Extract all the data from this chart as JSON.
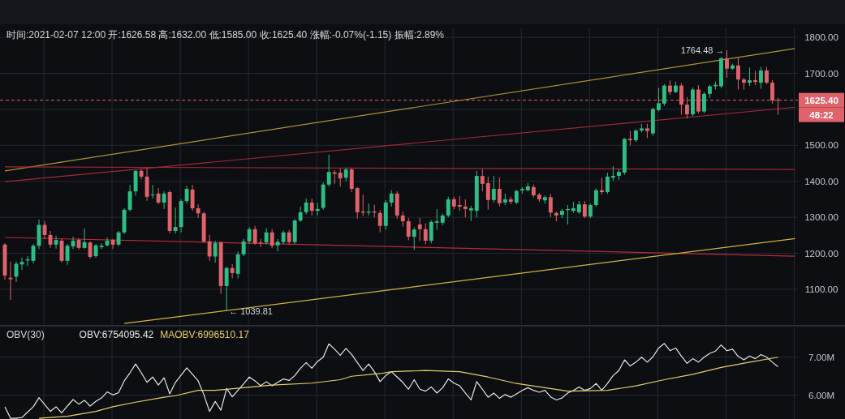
{
  "chart_data": [
    {
      "type": "candlestick",
      "title": "时间:2021-02-07 12:00 开:1626.58 高:1632.00 低:1585.00 收:1625.40 涨幅:-0.07%(-1.15) 振幅:2.89%",
      "categories": [
        null,
        null,
        null,
        null,
        null,
        null,
        null,
        null,
        null,
        null,
        null,
        null,
        null,
        null,
        null,
        null,
        null,
        null,
        null,
        null,
        null,
        null,
        null,
        null,
        null,
        null,
        null,
        null,
        null,
        null,
        null,
        null,
        null,
        null,
        null,
        null,
        null,
        null,
        null,
        null,
        null,
        null,
        null,
        null,
        null,
        null,
        null,
        null,
        null,
        null,
        null,
        null,
        null,
        null,
        null,
        null,
        null,
        null,
        null,
        null,
        null,
        null,
        null,
        null,
        null,
        null,
        null,
        null,
        null,
        null,
        null,
        null,
        null,
        null,
        null,
        null,
        null,
        null,
        null,
        null,
        null,
        null,
        null,
        null,
        null,
        null,
        null,
        null,
        null,
        null,
        null,
        null,
        null,
        null,
        null,
        null,
        null,
        null,
        null,
        null,
        null,
        null,
        null,
        null,
        null,
        null,
        null,
        null,
        null,
        null,
        null,
        null,
        null,
        null,
        null,
        null,
        null,
        null,
        null,
        null,
        null,
        null,
        null,
        null,
        null,
        null,
        null,
        null,
        null,
        null,
        null,
        null,
        null,
        null,
        null,
        null,
        null,
        null,
        null,
        null
      ],
      "colors": [
        "#e0626a",
        "#e0626a",
        "#2dbd85",
        "#2dbd85",
        "#2dbd85",
        "#2dbd85",
        "#2dbd85",
        "#e0626a",
        "#e0626a",
        "#2dbd85",
        "#e0626a",
        "#2dbd85",
        "#2dbd85",
        "#e0626a",
        "#2dbd85",
        "#e0626a",
        "#2dbd85",
        "#2dbd85",
        "#2dbd85",
        "#e0626a",
        "#2dbd85",
        "#2dbd85",
        "#2dbd85",
        "#2dbd85",
        "#e0626a",
        "#e0626a",
        "#2dbd85",
        "#e0626a",
        "#2dbd85",
        "#e0626a",
        "#2dbd85",
        "#2dbd85",
        "#2dbd85",
        "#e0626a",
        "#e0626a",
        "#e0626a",
        "#e0626a",
        "#2dbd85",
        "#e0626a",
        "#2dbd85",
        "#e0626a",
        "#2dbd85",
        "#2dbd85",
        "#2dbd85",
        "#e0626a",
        "#e0626a",
        "#2dbd85",
        "#e0626a",
        "#2dbd85",
        "#2dbd85",
        "#e0626a",
        "#2dbd85",
        "#2dbd85",
        "#2dbd85",
        "#e0626a",
        "#2dbd85",
        "#2dbd85",
        "#2dbd85",
        "#e0626a",
        "#e0626a",
        "#2dbd85",
        "#e0626a",
        "#e0626a",
        "#e0626a",
        "#2dbd85",
        "#e0626a",
        "#e0626a",
        "#2dbd85",
        "#2dbd85",
        "#e0626a",
        "#e0626a",
        "#e0626a",
        "#2dbd85",
        "#e0626a",
        "#e0626a",
        "#2dbd85",
        "#2dbd85",
        "#2dbd85",
        "#2dbd85",
        "#e0626a",
        "#e0626a",
        "#e0626a",
        "#2dbd85",
        "#2dbd85",
        "#e0626a",
        "#e0626a",
        "#2dbd85",
        "#e0626a",
        "#2dbd85",
        "#e0626a",
        "#2dbd85",
        "#2dbd85",
        "#2dbd85",
        "#e0626a",
        "#e0626a",
        "#2dbd85",
        "#e0626a",
        "#e0626a",
        "#2dbd85",
        "#2dbd85",
        "#2dbd85",
        "#2dbd85",
        "#e0626a",
        "#2dbd85",
        "#2dbd85",
        "#e0626a",
        "#2dbd85",
        "#2dbd85",
        "#2dbd85",
        "#2dbd85",
        "#e0626a",
        "#2dbd85",
        "#2dbd85",
        "#e0626a",
        "#2dbd85",
        "#2dbd85",
        "#2dbd85",
        "#e0626a",
        "#2dbd85",
        "#e0626a",
        "#e0626a",
        "#2dbd85",
        "#e0626a",
        "#2dbd85",
        "#2dbd85",
        "#2dbd85",
        "#2dbd85",
        "#e0626a",
        "#2dbd85",
        "#e0626a",
        "#e0626a",
        "#2dbd85",
        "#e0626a",
        "#2dbd85",
        "#e0626a",
        "#e0626a",
        "#e0626a",
        null,
        null,
        null
      ],
      "ohlc": [
        [
          1224,
          1228,
          1127,
          1138
        ],
        [
          1132,
          1177,
          1070,
          1128
        ],
        [
          1135,
          1177,
          1120,
          1171
        ],
        [
          1169,
          1188,
          1154,
          1176
        ],
        [
          1180,
          1192,
          1165,
          1183
        ],
        [
          1179,
          1226,
          1172,
          1221
        ],
        [
          1221,
          1294,
          1212,
          1279
        ],
        [
          1279,
          1289,
          1240,
          1251
        ],
        [
          1251,
          1262,
          1215,
          1224
        ],
        [
          1224,
          1249,
          1213,
          1237
        ],
        [
          1235,
          1240,
          1174,
          1179
        ],
        [
          1179,
          1226,
          1168,
          1221
        ],
        [
          1219,
          1246,
          1212,
          1235
        ],
        [
          1237,
          1242,
          1210,
          1215
        ],
        [
          1215,
          1269,
          1212,
          1231
        ],
        [
          1230,
          1233,
          1185,
          1190
        ],
        [
          1192,
          1226,
          1187,
          1222
        ],
        [
          1217,
          1228,
          1212,
          1221
        ],
        [
          1222,
          1244,
          1219,
          1235
        ],
        [
          1237,
          1240,
          1212,
          1224
        ],
        [
          1224,
          1262,
          1220,
          1258
        ],
        [
          1258,
          1325,
          1253,
          1321
        ],
        [
          1321,
          1390,
          1316,
          1372
        ],
        [
          1372,
          1431,
          1360,
          1429
        ],
        [
          1429,
          1434,
          1405,
          1413
        ],
        [
          1413,
          1436,
          1346,
          1357
        ],
        [
          1361,
          1390,
          1352,
          1363
        ],
        [
          1366,
          1381,
          1336,
          1341
        ],
        [
          1341,
          1372,
          1323,
          1366
        ],
        [
          1370,
          1375,
          1255,
          1262
        ],
        [
          1262,
          1327,
          1255,
          1273
        ],
        [
          1273,
          1350,
          1258,
          1345
        ],
        [
          1345,
          1388,
          1338,
          1379
        ],
        [
          1377,
          1390,
          1318,
          1325
        ],
        [
          1325,
          1336,
          1298,
          1311
        ],
        [
          1311,
          1315,
          1228,
          1233
        ],
        [
          1233,
          1251,
          1179,
          1191
        ],
        [
          1191,
          1235,
          1174,
          1228
        ],
        [
          1230,
          1233,
          1087,
          1109
        ],
        [
          1109,
          1163,
          1039.81,
          1159
        ],
        [
          1159,
          1170,
          1130,
          1145
        ],
        [
          1143,
          1205,
          1130,
          1197
        ],
        [
          1197,
          1240,
          1192,
          1233
        ],
        [
          1233,
          1273,
          1226,
          1267
        ],
        [
          1267,
          1276,
          1224,
          1228
        ],
        [
          1230,
          1240,
          1218,
          1228
        ],
        [
          1230,
          1270,
          1225,
          1258
        ],
        [
          1258,
          1267,
          1214,
          1221
        ],
        [
          1222,
          1240,
          1205,
          1232
        ],
        [
          1231,
          1263,
          1226,
          1258
        ],
        [
          1258,
          1265,
          1226,
          1231
        ],
        [
          1231,
          1295,
          1226,
          1291
        ],
        [
          1291,
          1330,
          1287,
          1314
        ],
        [
          1314,
          1352,
          1308,
          1341
        ],
        [
          1341,
          1352,
          1305,
          1318
        ],
        [
          1318,
          1340,
          1305,
          1323
        ],
        [
          1326,
          1397,
          1321,
          1391
        ],
        [
          1391,
          1474,
          1385,
          1426
        ],
        [
          1425,
          1431,
          1393,
          1421
        ],
        [
          1424,
          1435,
          1385,
          1408
        ],
        [
          1410,
          1438,
          1400,
          1433
        ],
        [
          1433,
          1438,
          1370,
          1379
        ],
        [
          1381,
          1384,
          1296,
          1314
        ],
        [
          1316,
          1363,
          1304,
          1313
        ],
        [
          1313,
          1338,
          1305,
          1316
        ],
        [
          1316,
          1335,
          1300,
          1313
        ],
        [
          1312,
          1320,
          1258,
          1276
        ],
        [
          1276,
          1348,
          1265,
          1341
        ],
        [
          1341,
          1375,
          1330,
          1366
        ],
        [
          1366,
          1372,
          1296,
          1305
        ],
        [
          1305,
          1316,
          1274,
          1289
        ],
        [
          1289,
          1298,
          1236,
          1246
        ],
        [
          1246,
          1272,
          1210,
          1266
        ],
        [
          1280,
          1298,
          1235,
          1267
        ],
        [
          1267,
          1283,
          1225,
          1235
        ],
        [
          1235,
          1292,
          1228,
          1287
        ],
        [
          1285,
          1323,
          1265,
          1289
        ],
        [
          1285,
          1310,
          1278,
          1305
        ],
        [
          1305,
          1357,
          1300,
          1350
        ],
        [
          1350,
          1357,
          1322,
          1330
        ],
        [
          1334,
          1359,
          1318,
          1330
        ],
        [
          1330,
          1350,
          1300,
          1323
        ],
        [
          1319,
          1332,
          1290,
          1325
        ],
        [
          1318,
          1429,
          1300,
          1415
        ],
        [
          1415,
          1434,
          1372,
          1393
        ],
        [
          1395,
          1413,
          1321,
          1348
        ],
        [
          1348,
          1415,
          1341,
          1379
        ],
        [
          1379,
          1411,
          1330,
          1339
        ],
        [
          1341,
          1366,
          1334,
          1350
        ],
        [
          1350,
          1357,
          1336,
          1343
        ],
        [
          1341,
          1377,
          1336,
          1373
        ],
        [
          1375,
          1384,
          1366,
          1379
        ],
        [
          1375,
          1395,
          1372,
          1386
        ],
        [
          1384,
          1391,
          1355,
          1361
        ],
        [
          1363,
          1368,
          1343,
          1350
        ],
        [
          1347,
          1361,
          1338,
          1356
        ],
        [
          1356,
          1365,
          1300,
          1313
        ],
        [
          1312,
          1316,
          1289,
          1305
        ],
        [
          1307,
          1323,
          1298,
          1318
        ],
        [
          1320,
          1334,
          1280,
          1323
        ],
        [
          1318,
          1343,
          1312,
          1325
        ],
        [
          1314,
          1345,
          1309,
          1336
        ],
        [
          1336,
          1345,
          1298,
          1302
        ],
        [
          1302,
          1338,
          1298,
          1334
        ],
        [
          1334,
          1380,
          1330,
          1375
        ],
        [
          1375,
          1410,
          1363,
          1370
        ],
        [
          1370,
          1424,
          1365,
          1413
        ],
        [
          1410,
          1442,
          1402,
          1415
        ],
        [
          1415,
          1434,
          1404,
          1426
        ],
        [
          1424,
          1520,
          1418,
          1518
        ],
        [
          1518,
          1540,
          1500,
          1514
        ],
        [
          1514,
          1545,
          1509,
          1541
        ],
        [
          1541,
          1560,
          1536,
          1547
        ],
        [
          1547,
          1560,
          1520,
          1540
        ],
        [
          1533,
          1605,
          1527,
          1601
        ],
        [
          1598,
          1660,
          1594,
          1617
        ],
        [
          1616,
          1670,
          1610,
          1666
        ],
        [
          1666,
          1680,
          1640,
          1648
        ],
        [
          1648,
          1677,
          1645,
          1666
        ],
        [
          1666,
          1673,
          1585,
          1613
        ],
        [
          1613,
          1634,
          1574,
          1586
        ],
        [
          1586,
          1661,
          1581,
          1655
        ],
        [
          1655,
          1667,
          1589,
          1594
        ],
        [
          1594,
          1648,
          1589,
          1643
        ],
        [
          1643,
          1668,
          1632,
          1664
        ],
        [
          1664,
          1677,
          1655,
          1668
        ],
        [
          1664,
          1745,
          1659,
          1742
        ],
        [
          1742,
          1764.48,
          1688,
          1713
        ],
        [
          1713,
          1727,
          1710,
          1722
        ],
        [
          1722,
          1745,
          1655,
          1683
        ],
        [
          1683,
          1688,
          1655,
          1674
        ],
        [
          1674,
          1716,
          1665,
          1681
        ],
        [
          1681,
          1707,
          1667,
          1676
        ],
        [
          1674,
          1718,
          1657,
          1708
        ],
        [
          1708,
          1718,
          1670,
          1674
        ],
        [
          1674,
          1681,
          1616,
          1625
        ],
        [
          1626.58,
          1632.0,
          1585.0,
          1625.4
        ],
        null,
        null,
        null
      ],
      "series": [
        {
          "type": "line",
          "color": "#ab9535",
          "values": [
            1429,
            null,
            null,
            null,
            null,
            null,
            null,
            null,
            null,
            null,
            null,
            null,
            null,
            null,
            null,
            null,
            null,
            null,
            null,
            null,
            null,
            null,
            null,
            null,
            null,
            null,
            null,
            null,
            null,
            null,
            null,
            null,
            null,
            null,
            null,
            null,
            null,
            null,
            null,
            null,
            null,
            null,
            null,
            null,
            null,
            null,
            null,
            null,
            null,
            null,
            null,
            null,
            null,
            null,
            null,
            null,
            null,
            null,
            null,
            null,
            null,
            null,
            null,
            null,
            null,
            null,
            null,
            null,
            null,
            null,
            null,
            null,
            null,
            null,
            null,
            null,
            null,
            null,
            null,
            null,
            null,
            null,
            null,
            null,
            null,
            null,
            null,
            null,
            null,
            null,
            null,
            null,
            null,
            null,
            null,
            null,
            null,
            null,
            null,
            null,
            null,
            null,
            null,
            null,
            null,
            null,
            null,
            null,
            null,
            null,
            null,
            null,
            null,
            null,
            null,
            null,
            null,
            null,
            null,
            null,
            null,
            null,
            null,
            null,
            null,
            null,
            null,
            null,
            null,
            null,
            null,
            null,
            null,
            null,
            null,
            null,
            null,
            null,
            null,
            1769
          ]
        },
        {
          "type": "line",
          "color": "#a3283a",
          "values": [
            1399,
            null,
            null,
            null,
            null,
            null,
            null,
            null,
            null,
            null,
            null,
            null,
            null,
            null,
            null,
            null,
            null,
            null,
            null,
            null,
            null,
            null,
            null,
            null,
            null,
            null,
            null,
            null,
            null,
            null,
            null,
            null,
            null,
            null,
            null,
            null,
            null,
            null,
            null,
            null,
            null,
            null,
            null,
            null,
            null,
            null,
            null,
            null,
            null,
            null,
            null,
            null,
            null,
            null,
            null,
            null,
            null,
            null,
            null,
            null,
            null,
            null,
            null,
            null,
            null,
            null,
            null,
            null,
            null,
            null,
            null,
            null,
            null,
            null,
            null,
            null,
            null,
            null,
            null,
            null,
            null,
            null,
            null,
            null,
            null,
            null,
            null,
            null,
            null,
            null,
            null,
            null,
            null,
            null,
            null,
            null,
            null,
            null,
            null,
            null,
            null,
            null,
            null,
            null,
            null,
            null,
            null,
            null,
            null,
            null,
            null,
            null,
            null,
            null,
            null,
            null,
            null,
            null,
            null,
            null,
            null,
            null,
            null,
            null,
            null,
            null,
            null,
            null,
            null,
            null,
            null,
            null,
            null,
            null,
            null,
            null,
            null,
            null,
            null,
            1606
          ]
        },
        {
          "type": "line",
          "color": "#a3283a",
          "values": [
            1440,
            null,
            null,
            null,
            null,
            null,
            null,
            null,
            null,
            null,
            null,
            null,
            null,
            null,
            null,
            null,
            null,
            null,
            null,
            null,
            null,
            null,
            null,
            null,
            null,
            null,
            null,
            null,
            null,
            null,
            null,
            null,
            null,
            null,
            null,
            null,
            null,
            null,
            null,
            null,
            null,
            null,
            null,
            null,
            null,
            null,
            null,
            null,
            null,
            null,
            null,
            null,
            null,
            null,
            null,
            null,
            null,
            null,
            null,
            null,
            null,
            null,
            null,
            null,
            null,
            null,
            null,
            null,
            null,
            null,
            null,
            null,
            null,
            null,
            null,
            null,
            null,
            null,
            null,
            null,
            null,
            null,
            null,
            null,
            null,
            null,
            null,
            null,
            null,
            null,
            null,
            null,
            null,
            null,
            null,
            null,
            null,
            null,
            null,
            null,
            null,
            null,
            null,
            null,
            null,
            null,
            null,
            null,
            null,
            null,
            null,
            null,
            null,
            null,
            null,
            null,
            null,
            null,
            null,
            null,
            null,
            null,
            null,
            null,
            null,
            null,
            null,
            null,
            null,
            null,
            null,
            null,
            null,
            null,
            null,
            null,
            null,
            null,
            null,
            1433
          ]
        },
        {
          "type": "line",
          "color": "#b52c3d",
          "values": [
            1244,
            null,
            null,
            null,
            null,
            null,
            null,
            null,
            null,
            null,
            null,
            null,
            null,
            null,
            null,
            null,
            null,
            null,
            null,
            null,
            null,
            null,
            null,
            null,
            null,
            null,
            null,
            null,
            null,
            null,
            null,
            null,
            null,
            null,
            null,
            null,
            null,
            null,
            null,
            null,
            null,
            null,
            null,
            null,
            null,
            null,
            null,
            null,
            null,
            null,
            null,
            null,
            null,
            null,
            null,
            null,
            null,
            null,
            null,
            null,
            null,
            null,
            null,
            null,
            null,
            null,
            null,
            null,
            null,
            null,
            null,
            null,
            null,
            null,
            null,
            null,
            null,
            null,
            null,
            null,
            null,
            null,
            null,
            null,
            null,
            null,
            null,
            null,
            null,
            null,
            null,
            null,
            null,
            null,
            null,
            null,
            null,
            null,
            null,
            null,
            null,
            null,
            null,
            null,
            null,
            null,
            null,
            null,
            null,
            null,
            null,
            null,
            null,
            null,
            null,
            null,
            null,
            null,
            null,
            null,
            null,
            null,
            null,
            null,
            null,
            null,
            null,
            null,
            null,
            null,
            null,
            null,
            null,
            null,
            null,
            null,
            null,
            null,
            null,
            1192
          ]
        },
        {
          "type": "line",
          "color": "#cdb63f",
          "values": [
            null,
            null,
            null,
            null,
            null,
            null,
            null,
            null,
            null,
            null,
            null,
            null,
            null,
            null,
            null,
            null,
            null,
            null,
            null,
            null,
            null,
            1005,
            null,
            null,
            null,
            null,
            null,
            null,
            null,
            null,
            null,
            null,
            null,
            null,
            null,
            null,
            null,
            null,
            null,
            null,
            null,
            null,
            null,
            null,
            null,
            null,
            null,
            null,
            null,
            null,
            null,
            null,
            null,
            null,
            null,
            null,
            null,
            null,
            null,
            null,
            null,
            null,
            null,
            null,
            null,
            null,
            null,
            null,
            null,
            null,
            null,
            null,
            null,
            null,
            null,
            null,
            null,
            null,
            null,
            null,
            null,
            null,
            null,
            null,
            null,
            null,
            null,
            null,
            null,
            null,
            null,
            null,
            null,
            null,
            null,
            null,
            null,
            null,
            null,
            null,
            null,
            null,
            null,
            null,
            null,
            null,
            null,
            null,
            null,
            null,
            null,
            null,
            null,
            null,
            null,
            null,
            null,
            null,
            null,
            null,
            null,
            null,
            null,
            null,
            null,
            null,
            null,
            null,
            null,
            null,
            null,
            null,
            null,
            null,
            null,
            null,
            null,
            null,
            null,
            1241
          ]
        }
      ],
      "ref_lines": [
        {
          "axis": "y",
          "value": 1625.4,
          "label": "1625.40",
          "line_style": "dashed",
          "color": "#e0626a"
        }
      ],
      "annotations": [
        "1764.48 →",
        "← 1039.81",
        "48:22"
      ],
      "ylim": [
        1003,
        1825
      ],
      "yticks": [
        {
          "value": 1100,
          "label": "1100.00"
        },
        {
          "value": 1200,
          "label": "1200.00"
        },
        {
          "value": 1300,
          "label": "1300.00"
        },
        {
          "value": 1400,
          "label": "1400.00"
        },
        {
          "value": 1500,
          "label": "1500.00"
        },
        {
          "value": 1600,
          "label": null
        },
        {
          "value": 1700,
          "label": "1700.00"
        },
        {
          "value": 1800,
          "label": "1800.00"
        }
      ],
      "grid": true
    },
    {
      "type": "line",
      "title": "OBV(30)",
      "categories": [
        null,
        null,
        null,
        null,
        null,
        null,
        null,
        null,
        null,
        null,
        null,
        null,
        null,
        null,
        null,
        null,
        null,
        null,
        null,
        null,
        null,
        null,
        null,
        null,
        null,
        null,
        null,
        null,
        null,
        null,
        null,
        null,
        null,
        null,
        null,
        null,
        null,
        null,
        null,
        null,
        null,
        null,
        null,
        null,
        null,
        null,
        null,
        null,
        null,
        null,
        null,
        null,
        null,
        null,
        null,
        null,
        null,
        null,
        null,
        null,
        null,
        null,
        null,
        null,
        null,
        null,
        null,
        null,
        null,
        null,
        null,
        null,
        null,
        null,
        null,
        null,
        null,
        null,
        null,
        null,
        null,
        null,
        null,
        null,
        null,
        null,
        null,
        null,
        null,
        null,
        null,
        null,
        null,
        null,
        null,
        null,
        null,
        null,
        null,
        null,
        null,
        null,
        null,
        null,
        null,
        null,
        null,
        null,
        null,
        null,
        null,
        null,
        null,
        null,
        null,
        null,
        null,
        null,
        null,
        null,
        null,
        null,
        null,
        null,
        null,
        null,
        null,
        null,
        null,
        null,
        null,
        null,
        null,
        null,
        null,
        null,
        null,
        null,
        null,
        null
      ],
      "series": [
        {
          "name": "OBV:6754095.42",
          "color": "#e6e6e6",
          "values": [
            5.7,
            5.4,
            5.4,
            5.42,
            5.56,
            5.7,
            5.94,
            5.76,
            5.58,
            5.7,
            5.54,
            5.72,
            5.89,
            5.77,
            5.87,
            5.72,
            5.84,
            5.93,
            6.09,
            6.01,
            6.07,
            6.38,
            6.59,
            6.82,
            6.59,
            6.34,
            6.48,
            6.27,
            6.46,
            6.04,
            6.34,
            6.53,
            6.72,
            6.55,
            6.38,
            6.02,
            5.58,
            5.84,
            5.61,
            6.18,
            5.96,
            6.13,
            6.3,
            6.48,
            6.38,
            6.25,
            6.36,
            6.25,
            6.34,
            6.43,
            6.39,
            6.52,
            6.71,
            6.86,
            6.71,
            6.89,
            7.0,
            7.35,
            7.21,
            7.05,
            7.23,
            7.07,
            6.86,
            6.65,
            6.82,
            6.62,
            6.36,
            6.52,
            6.62,
            6.48,
            6.34,
            6.16,
            6.41,
            6.16,
            6.11,
            6.22,
            6.06,
            6.2,
            6.43,
            6.32,
            6.25,
            6.06,
            5.88,
            6.36,
            6.16,
            5.95,
            6.06,
            5.92,
            6.02,
            5.95,
            6.04,
            6.13,
            6.2,
            6.13,
            6.08,
            6.13,
            5.96,
            5.88,
            5.93,
            6.06,
            6.13,
            6.22,
            6.13,
            6.18,
            6.31,
            6.13,
            6.31,
            6.52,
            6.65,
            6.93,
            6.77,
            6.87,
            7.0,
            6.87,
            7.01,
            7.24,
            7.36,
            7.17,
            7.24,
            7.03,
            6.84,
            6.96,
            6.87,
            7.0,
            7.1,
            7.16,
            7.32,
            7.17,
            7.21,
            7.02,
            6.93,
            7.03,
            6.96,
            7.07,
            7.0,
            6.87,
            6.75,
            null,
            null,
            null
          ]
        },
        {
          "name": "MAOBV:6996510.17",
          "color": "#e3d06a",
          "values": [
            null,
            null,
            null,
            null,
            null,
            null,
            5.4,
            null,
            null,
            null,
            null,
            5.45,
            null,
            null,
            null,
            null,
            5.58,
            null,
            null,
            5.7,
            null,
            null,
            null,
            5.82,
            null,
            null,
            null,
            null,
            5.95,
            null,
            5.99,
            null,
            null,
            null,
            6.13,
            null,
            null,
            6.13,
            null,
            null,
            null,
            null,
            6.2,
            null,
            null,
            null,
            null,
            6.27,
            null,
            null,
            null,
            null,
            null,
            null,
            6.32,
            null,
            null,
            null,
            null,
            6.41,
            null,
            6.5,
            null,
            null,
            null,
            null,
            6.57,
            null,
            6.62,
            null,
            null,
            null,
            null,
            null,
            6.65,
            null,
            null,
            null,
            null,
            null,
            6.62,
            null,
            null,
            null,
            null,
            6.48,
            null,
            null,
            null,
            null,
            6.31,
            null,
            null,
            null,
            null,
            6.2,
            null,
            null,
            null,
            6.11,
            null,
            null,
            null,
            null,
            null,
            null,
            6.13,
            null,
            null,
            null,
            null,
            6.25,
            null,
            null,
            null,
            null,
            6.41,
            null,
            null,
            null,
            null,
            6.55,
            null,
            null,
            null,
            null,
            6.73,
            null,
            null,
            null,
            null,
            6.87,
            null,
            null,
            null,
            null,
            7.0,
            null,
            null,
            null
          ]
        }
      ],
      "ylim": [
        5.38,
        7.78
      ],
      "yticks": [
        {
          "value": 6,
          "label": "6.00M"
        },
        {
          "value": 7,
          "label": "7.00M"
        }
      ],
      "legend": "top left",
      "grid": true
    }
  ]
}
